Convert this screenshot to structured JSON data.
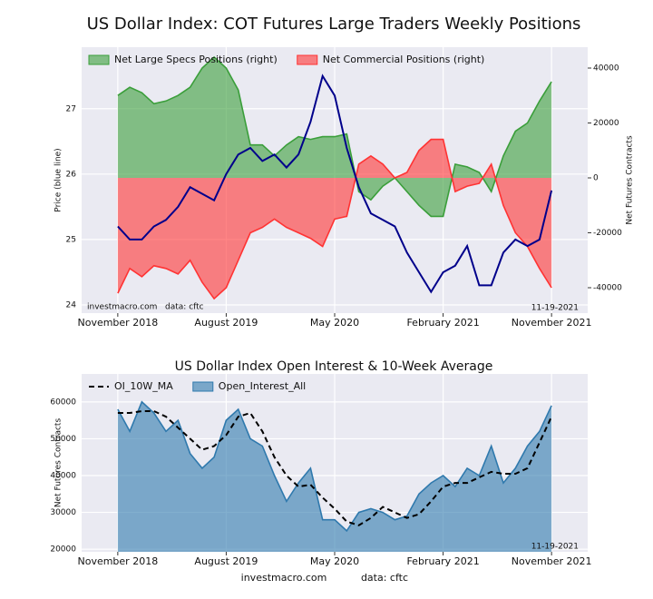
{
  "title": "US Dollar Index: COT Futures Large Traders Weekly Positions",
  "footer": {
    "site": "investmacro.com",
    "data": "data: cftc"
  },
  "chart_data": [
    {
      "type": "line",
      "ylabel": "Price (blue line)",
      "y2label": "Net Futures Contracts",
      "source_note": "investmacro.com   data: cftc",
      "date_note": "11-19-2021",
      "legend": "upper left",
      "grid": true,
      "x": [
        "2018-11",
        "2018-12",
        "2019-01",
        "2019-02",
        "2019-03",
        "2019-04",
        "2019-05",
        "2019-06",
        "2019-07",
        "2019-08",
        "2019-09",
        "2019-10",
        "2019-11",
        "2019-12",
        "2020-01",
        "2020-02",
        "2020-03",
        "2020-04",
        "2020-05",
        "2020-06",
        "2020-07",
        "2020-08",
        "2020-09",
        "2020-10",
        "2020-11",
        "2020-12",
        "2021-01",
        "2021-02",
        "2021-03",
        "2021-04",
        "2021-05",
        "2021-06",
        "2021-07",
        "2021-08",
        "2021-09",
        "2021-10",
        "2021-11"
      ],
      "xlim": [
        "2018-08",
        "2022-02"
      ],
      "xticks": [
        {
          "value": "2018-11",
          "label": "November 2018"
        },
        {
          "value": "2019-08",
          "label": "August 2019"
        },
        {
          "value": "2020-05",
          "label": "May 2020"
        },
        {
          "value": "2021-02",
          "label": "February 2021"
        },
        {
          "value": "2021-11",
          "label": "November 2021"
        }
      ],
      "ylim": [
        23.875,
        27.94
      ],
      "yticks": [
        24,
        25,
        26,
        27
      ],
      "y2lim": [
        -49250,
        47600
      ],
      "y2ticks": [
        -40000,
        -20000,
        0,
        20000,
        40000
      ],
      "series": [
        {
          "name": "Net Large Specs Positions (right)",
          "style": "area",
          "axis": "y2",
          "color": "#3a9e3a",
          "values": [
            30000,
            33000,
            31000,
            27000,
            28000,
            30000,
            33000,
            40000,
            44000,
            40000,
            32000,
            12000,
            12000,
            8000,
            12000,
            15000,
            14000,
            15000,
            15000,
            16000,
            -5000,
            -8000,
            -3000,
            0,
            -5000,
            -10000,
            -14000,
            -14000,
            5000,
            4000,
            2000,
            -5000,
            8000,
            17000,
            20000,
            28000,
            35000
          ]
        },
        {
          "name": "Net Commercial Positions (right)",
          "style": "area",
          "axis": "y2",
          "color": "#ff3333",
          "values": [
            -42000,
            -33000,
            -36000,
            -32000,
            -33000,
            -35000,
            -30000,
            -38000,
            -44000,
            -40000,
            -30000,
            -20000,
            -18000,
            -15000,
            -18000,
            -20000,
            -22000,
            -25000,
            -15000,
            -14000,
            5000,
            8000,
            5000,
            0,
            2000,
            10000,
            14000,
            14000,
            -5000,
            -3000,
            -2000,
            5000,
            -10000,
            -20000,
            -25000,
            -33000,
            -40000
          ]
        },
        {
          "style": "line",
          "color": "#00008b",
          "values": [
            25.2,
            25.0,
            25.0,
            25.2,
            25.3,
            25.5,
            25.8,
            25.7,
            25.6,
            26.0,
            26.3,
            26.4,
            26.2,
            26.3,
            26.1,
            26.3,
            26.8,
            27.5,
            27.2,
            26.4,
            25.8,
            25.4,
            25.3,
            25.2,
            24.8,
            24.5,
            24.2,
            24.5,
            24.6,
            24.9,
            24.3,
            24.3,
            24.8,
            25.0,
            24.9,
            25.0,
            25.75
          ]
        }
      ]
    },
    {
      "type": "line",
      "title": "US Dollar Index Open Interest & 10-Week Average",
      "ylabel": "Net Futures Contracts",
      "date_note": "11-19-2021",
      "legend": "upper left",
      "grid": true,
      "x": [
        "2018-11",
        "2018-12",
        "2019-01",
        "2019-02",
        "2019-03",
        "2019-04",
        "2019-05",
        "2019-06",
        "2019-07",
        "2019-08",
        "2019-09",
        "2019-10",
        "2019-11",
        "2019-12",
        "2020-01",
        "2020-02",
        "2020-03",
        "2020-04",
        "2020-05",
        "2020-06",
        "2020-07",
        "2020-08",
        "2020-09",
        "2020-10",
        "2020-11",
        "2020-12",
        "2021-01",
        "2021-02",
        "2021-03",
        "2021-04",
        "2021-05",
        "2021-06",
        "2021-07",
        "2021-08",
        "2021-09",
        "2021-10",
        "2021-11"
      ],
      "xlim": [
        "2018-08",
        "2022-02"
      ],
      "xticks": [
        {
          "value": "2018-11",
          "label": "November 2018"
        },
        {
          "value": "2019-08",
          "label": "August 2019"
        },
        {
          "value": "2020-05",
          "label": "May 2020"
        },
        {
          "value": "2021-02",
          "label": "February 2021"
        },
        {
          "value": "2021-11",
          "label": "November 2021"
        }
      ],
      "ylim": [
        19300,
        67600
      ],
      "yticks": [
        20000,
        30000,
        40000,
        50000,
        60000
      ],
      "series": [
        {
          "name": "OI_10W_MA",
          "style": "dashed",
          "color": "#000000",
          "values": [
            57000,
            57000,
            57500,
            57500,
            56000,
            53000,
            50000,
            47000,
            48000,
            51000,
            56000,
            57000,
            52000,
            45000,
            40000,
            37000,
            37500,
            34000,
            31000,
            27500,
            26500,
            28500,
            31500,
            30000,
            28500,
            29500,
            33000,
            37000,
            38000,
            38000,
            39500,
            41000,
            40500,
            40500,
            42000,
            49000,
            56000
          ]
        },
        {
          "name": "Open_Interest_All",
          "style": "area",
          "color": "#2f79ad",
          "values": [
            58000,
            52000,
            60000,
            57000,
            52000,
            55000,
            46000,
            42000,
            45000,
            55000,
            58000,
            50000,
            48000,
            40000,
            33000,
            38000,
            42000,
            28000,
            28000,
            25000,
            30000,
            31000,
            30000,
            28000,
            29000,
            35000,
            38000,
            40000,
            37000,
            42000,
            40000,
            48000,
            38000,
            42000,
            48000,
            52000,
            59000
          ]
        }
      ]
    }
  ]
}
